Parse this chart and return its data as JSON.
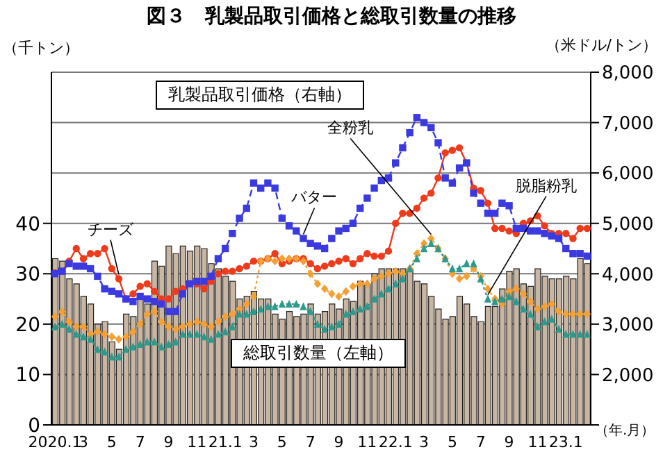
{
  "chart_data": {
    "type": "bar",
    "title": "図３　乳製品取引価格と総取引数量の推移",
    "xlabel": "（年.月）",
    "ylabel": "（千トン）",
    "y2label": "（米ドル/トン）",
    "categories": [
      "2020.1",
      null,
      null,
      null,
      "3",
      null,
      null,
      null,
      "5",
      null,
      null,
      null,
      "7",
      null,
      null,
      null,
      "9",
      null,
      null,
      null,
      "11",
      null,
      null,
      null,
      "21.1",
      null,
      null,
      null,
      "3",
      null,
      null,
      null,
      "5",
      null,
      null,
      null,
      "7",
      null,
      null,
      null,
      "9",
      null,
      null,
      null,
      "11",
      null,
      null,
      null,
      "22.1",
      null,
      null,
      null,
      "3",
      null,
      null,
      null,
      "5",
      null,
      null,
      null,
      "7",
      null,
      null,
      null,
      "9",
      null,
      null,
      null,
      "11",
      null,
      null,
      null,
      "23.1",
      null,
      null,
      null
    ],
    "ylim": [
      0,
      70
    ],
    "yticks": [
      0,
      10,
      20,
      30,
      40
    ],
    "y2lim": [
      1000,
      8000
    ],
    "y2ticks": [
      {
        "value": 1000,
        "label": null
      },
      {
        "value": 2000,
        "label": "2,000"
      },
      {
        "value": 3000,
        "label": "3,000"
      },
      {
        "value": 4000,
        "label": "4,000"
      },
      {
        "value": 5000,
        "label": "5,000"
      },
      {
        "value": 6000,
        "label": "6,000"
      },
      {
        "value": 7000,
        "label": "7,000"
      },
      {
        "value": 8000,
        "label": "8,000"
      }
    ],
    "grid": "y",
    "annotations": [
      "乳製品取引価格（右軸）"
    ],
    "series": [
      {
        "name": "総取引数量（左軸）",
        "color": "#c8b6a3",
        "values": [
          33,
          32.5,
          29,
          28,
          25.5,
          24,
          20,
          20.5,
          16.5,
          15,
          22,
          21.5,
          25.5,
          24,
          32.5,
          31.5,
          35.5,
          34,
          35.5,
          34.5,
          35.5,
          35,
          32,
          31,
          29.5,
          28.5,
          25,
          25.5,
          26.5,
          25,
          25,
          22,
          21,
          22.5,
          21.5,
          22,
          24,
          22,
          22.5,
          24,
          23,
          25,
          24.5,
          28.5,
          28,
          30,
          31,
          31,
          31,
          31,
          31,
          28.5,
          28,
          25.5,
          23,
          21,
          21.5,
          25.5,
          24,
          21.5,
          20.5,
          23.5,
          23.5,
          27,
          30.5,
          31,
          28,
          27.5,
          31,
          29.5,
          29,
          29,
          29.5,
          29,
          33,
          32
        ]
      },
      {
        "name": "チーズ",
        "type": "line",
        "axis": "y2",
        "color": "#ee3b1c",
        "marker": "circle",
        "line_style": "solid",
        "values": [
          4020,
          4050,
          4250,
          4500,
          4300,
          4400,
          4400,
          4500,
          4100,
          3900,
          3500,
          3600,
          3750,
          3800,
          3650,
          3500,
          3500,
          3650,
          3700,
          3800,
          3800,
          3700,
          3850,
          4000,
          4050,
          4050,
          4100,
          4150,
          4250,
          4250,
          4300,
          4400,
          4200,
          4250,
          4300,
          4300,
          4200,
          4100,
          4150,
          4200,
          4250,
          4300,
          4200,
          4300,
          4400,
          4350,
          4350,
          4450,
          5000,
          5200,
          5200,
          5300,
          5500,
          5600,
          5900,
          6400,
          6450,
          6500,
          6200,
          5700,
          5650,
          5400,
          4900,
          4900,
          4850,
          4800,
          5000,
          5050,
          5150,
          4950,
          4800,
          4800,
          4800,
          4700,
          4900,
          4900
        ]
      },
      {
        "name": "バター",
        "type": "line",
        "axis": "y2",
        "color": "#3a3ae0",
        "marker": "square",
        "line_style": "dashed",
        "values": [
          4000,
          4050,
          4200,
          4150,
          4150,
          4100,
          3950,
          3700,
          3650,
          3600,
          3500,
          3450,
          3550,
          3500,
          3450,
          3400,
          3250,
          3250,
          3600,
          3800,
          3850,
          3850,
          3950,
          4300,
          4500,
          4800,
          5100,
          5300,
          5800,
          5700,
          5800,
          5700,
          5100,
          4950,
          4850,
          4700,
          4600,
          4550,
          4500,
          4700,
          4850,
          4900,
          5000,
          5300,
          5500,
          5700,
          5850,
          5900,
          6200,
          6500,
          6800,
          7100,
          7000,
          6900,
          6600,
          5900,
          5800,
          6100,
          6200,
          5600,
          5400,
          5200,
          5200,
          5400,
          5350,
          4900,
          4900,
          4850,
          4850,
          4800,
          4750,
          4700,
          4500,
          4400,
          4400,
          4350
        ]
      },
      {
        "name": "全粉乳",
        "type": "line",
        "axis": "y2",
        "color": "#f5a033",
        "marker": "diamond",
        "line_style": "dotted",
        "values": [
          3150,
          3250,
          3050,
          2950,
          2950,
          2800,
          2850,
          2800,
          2750,
          2700,
          2750,
          2850,
          3000,
          3200,
          3250,
          3050,
          2950,
          2900,
          2950,
          3000,
          3050,
          3000,
          2950,
          3050,
          3150,
          3200,
          3300,
          3400,
          3550,
          4250,
          4300,
          4250,
          4300,
          4300,
          4300,
          4250,
          4000,
          3800,
          3700,
          3600,
          3550,
          3650,
          3750,
          3800,
          3800,
          3900,
          3950,
          4000,
          4050,
          4000,
          4100,
          4400,
          4600,
          4700,
          4500,
          4300,
          4000,
          3900,
          3950,
          4100,
          3950,
          3700,
          3500,
          3400,
          3650,
          3700,
          3600,
          3450,
          3300,
          3350,
          3400,
          3250,
          3200,
          3200,
          3200,
          3200
        ]
      },
      {
        "name": "脱脂粉乳",
        "type": "line",
        "axis": "y2",
        "color": "#2e9a8c",
        "marker": "triangle",
        "line_style": "dotted",
        "values": [
          2950,
          3000,
          2900,
          2800,
          2750,
          2700,
          2500,
          2450,
          2350,
          2350,
          2500,
          2550,
          2600,
          2650,
          2650,
          2550,
          2600,
          2650,
          2800,
          2800,
          2800,
          2750,
          2700,
          2800,
          2850,
          2950,
          3200,
          3200,
          3250,
          3300,
          3350,
          3350,
          3400,
          3400,
          3400,
          3350,
          3250,
          3000,
          2900,
          2950,
          3000,
          3200,
          3250,
          3300,
          3350,
          3500,
          3600,
          3700,
          3800,
          3900,
          4100,
          4300,
          4500,
          4600,
          4500,
          4300,
          4100,
          4100,
          4200,
          4200,
          3900,
          3500,
          3450,
          3500,
          3550,
          3450,
          3300,
          3200,
          2950,
          3050,
          3100,
          2900,
          2800,
          2800,
          2800,
          2800
        ]
      }
    ]
  }
}
